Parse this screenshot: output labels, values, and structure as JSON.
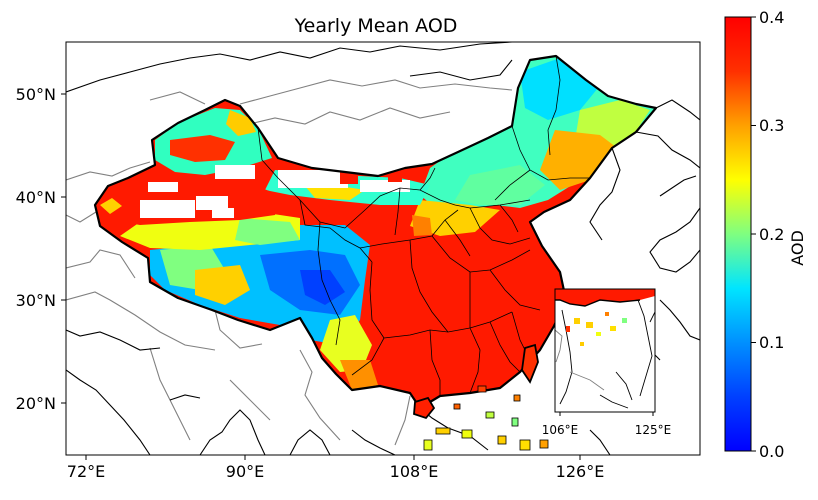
{
  "title": "Yearly Mean AOD",
  "lat_ticks": [
    "50°N",
    "40°N",
    "30°N",
    "20°N"
  ],
  "lon_ticks": [
    "72°E",
    "90°E",
    "108°E",
    "126°E"
  ],
  "inset_lon_ticks": [
    "106°E",
    "125°E"
  ],
  "colorbar": {
    "label": "AOD",
    "ticks": [
      "0.0",
      "0.1",
      "0.2",
      "0.3",
      "0.4"
    ],
    "range": [
      0.0,
      0.4
    ],
    "colormap": "jet",
    "colors": [
      "#00007f",
      "#0000ff",
      "#007fff",
      "#00ffff",
      "#7fff7f",
      "#ffff00",
      "#ff7f00",
      "#ff0000",
      "#7f0000"
    ]
  },
  "map": {
    "lon_range": [
      70,
      135
    ],
    "lat_range": [
      15,
      55
    ],
    "high_value_color": "#ff0000",
    "missing_color": "#ffffff"
  }
}
